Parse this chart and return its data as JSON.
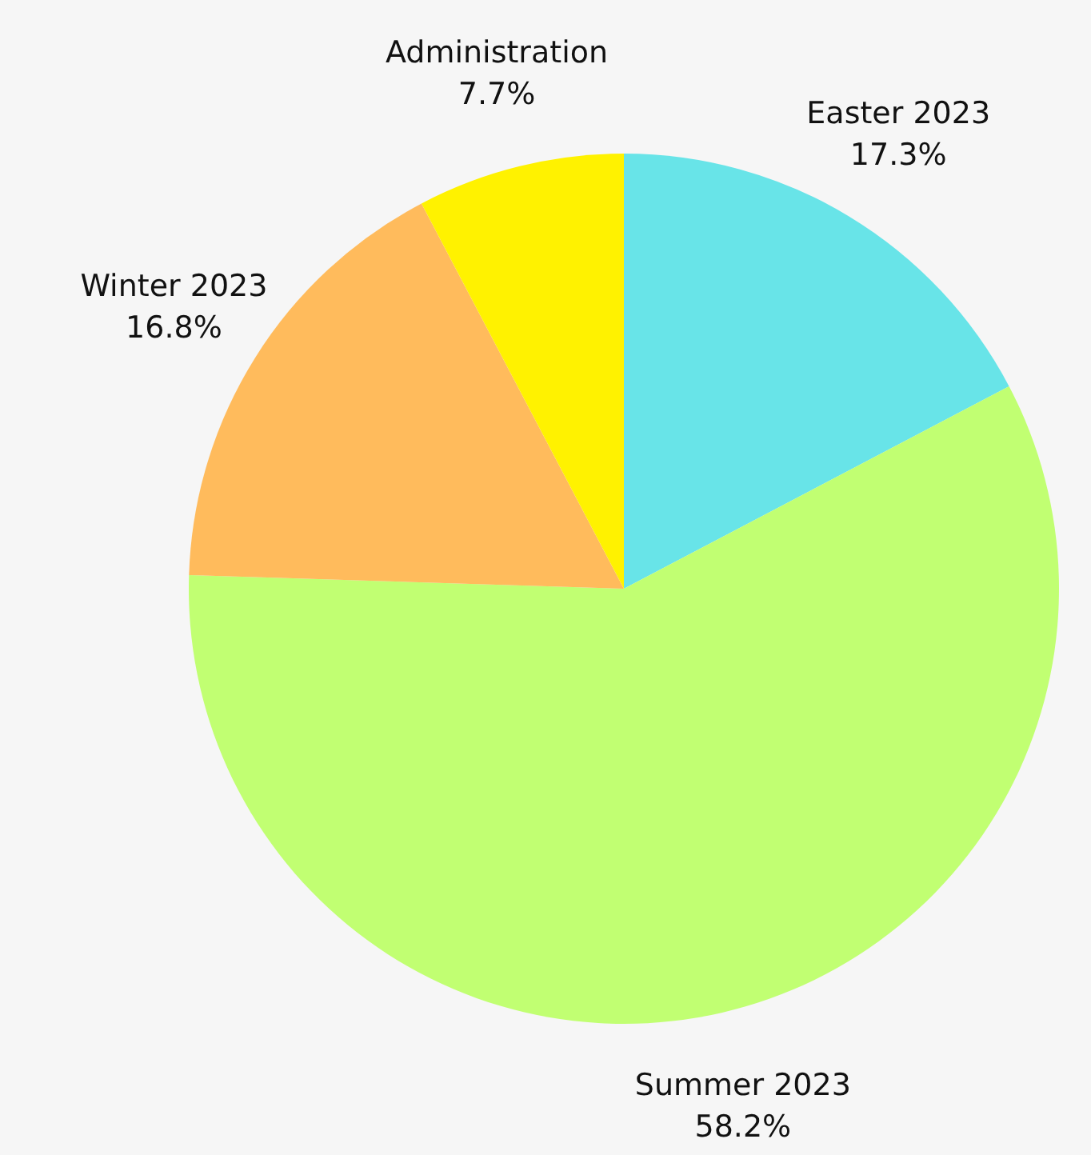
{
  "chart_data": {
    "type": "pie",
    "categories": [
      "Easter 2023",
      "Summer 2023",
      "Winter 2023",
      "Administration"
    ],
    "values": [
      17.3,
      58.2,
      16.8,
      7.7
    ],
    "colors": [
      "#68e4e8",
      "#c1ff72",
      "#ffbb5c",
      "#fff200"
    ],
    "value_labels": [
      "17.3%",
      "58.2%",
      "16.8%",
      "7.7%"
    ]
  }
}
